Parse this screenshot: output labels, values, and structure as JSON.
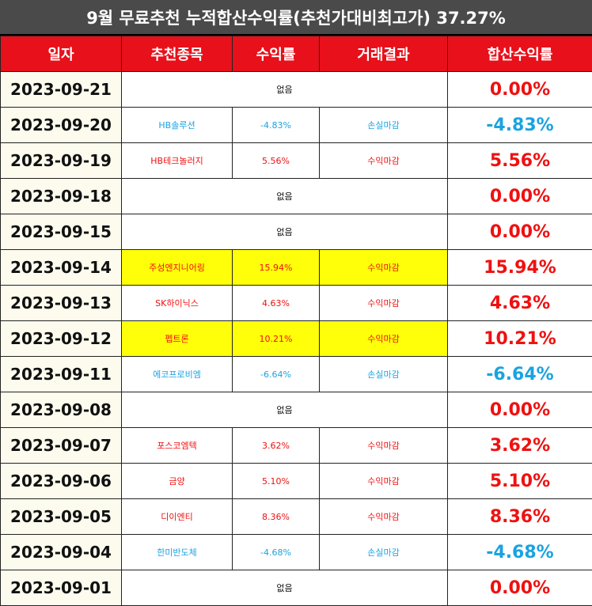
{
  "title": "9월 무료추천 누적합산수익률(추천가대비최고가) 37.27%",
  "headers": [
    "일자",
    "추천종목",
    "수익률",
    "거래결과",
    "합산수익률"
  ],
  "colors": {
    "header_bg": "#e8101a",
    "up": "#f01010",
    "down": "#1aa3e0",
    "highlight": "#ffff0a"
  },
  "rows": [
    {
      "date": "2023-09-21",
      "none": "없음",
      "total": "0.00%",
      "dir": "up"
    },
    {
      "date": "2023-09-20",
      "stock": "HB솔루션",
      "rate": "-4.83%",
      "result": "손실마감",
      "total": "-4.83%",
      "dir": "down"
    },
    {
      "date": "2023-09-19",
      "stock": "HB테크놀러지",
      "rate": "5.56%",
      "result": "수익마감",
      "total": "5.56%",
      "dir": "up"
    },
    {
      "date": "2023-09-18",
      "none": "없음",
      "total": "0.00%",
      "dir": "up"
    },
    {
      "date": "2023-09-15",
      "none": "없음",
      "total": "0.00%",
      "dir": "up"
    },
    {
      "date": "2023-09-14",
      "stock": "주성엔지니어링",
      "rate": "15.94%",
      "result": "수익마감",
      "total": "15.94%",
      "dir": "up",
      "highlight": true
    },
    {
      "date": "2023-09-13",
      "stock": "SK하이닉스",
      "rate": "4.63%",
      "result": "수익마감",
      "total": "4.63%",
      "dir": "up"
    },
    {
      "date": "2023-09-12",
      "stock": "펩트론",
      "rate": "10.21%",
      "result": "수익마감",
      "total": "10.21%",
      "dir": "up",
      "highlight": true
    },
    {
      "date": "2023-09-11",
      "stock": "에코프로비엠",
      "rate": "-6.64%",
      "result": "손실마감",
      "total": "-6.64%",
      "dir": "down"
    },
    {
      "date": "2023-09-08",
      "none": "없음",
      "total": "0.00%",
      "dir": "up"
    },
    {
      "date": "2023-09-07",
      "stock": "포스코엠텍",
      "rate": "3.62%",
      "result": "수익마감",
      "total": "3.62%",
      "dir": "up"
    },
    {
      "date": "2023-09-06",
      "stock": "금양",
      "rate": "5.10%",
      "result": "수익마감",
      "total": "5.10%",
      "dir": "up"
    },
    {
      "date": "2023-09-05",
      "stock": "디이엔티",
      "rate": "8.36%",
      "result": "수익마감",
      "total": "8.36%",
      "dir": "up"
    },
    {
      "date": "2023-09-04",
      "stock": "한미반도체",
      "rate": "-4.68%",
      "result": "손실마감",
      "total": "-4.68%",
      "dir": "down"
    },
    {
      "date": "2023-09-01",
      "none": "없음",
      "total": "0.00%",
      "dir": "up"
    }
  ]
}
